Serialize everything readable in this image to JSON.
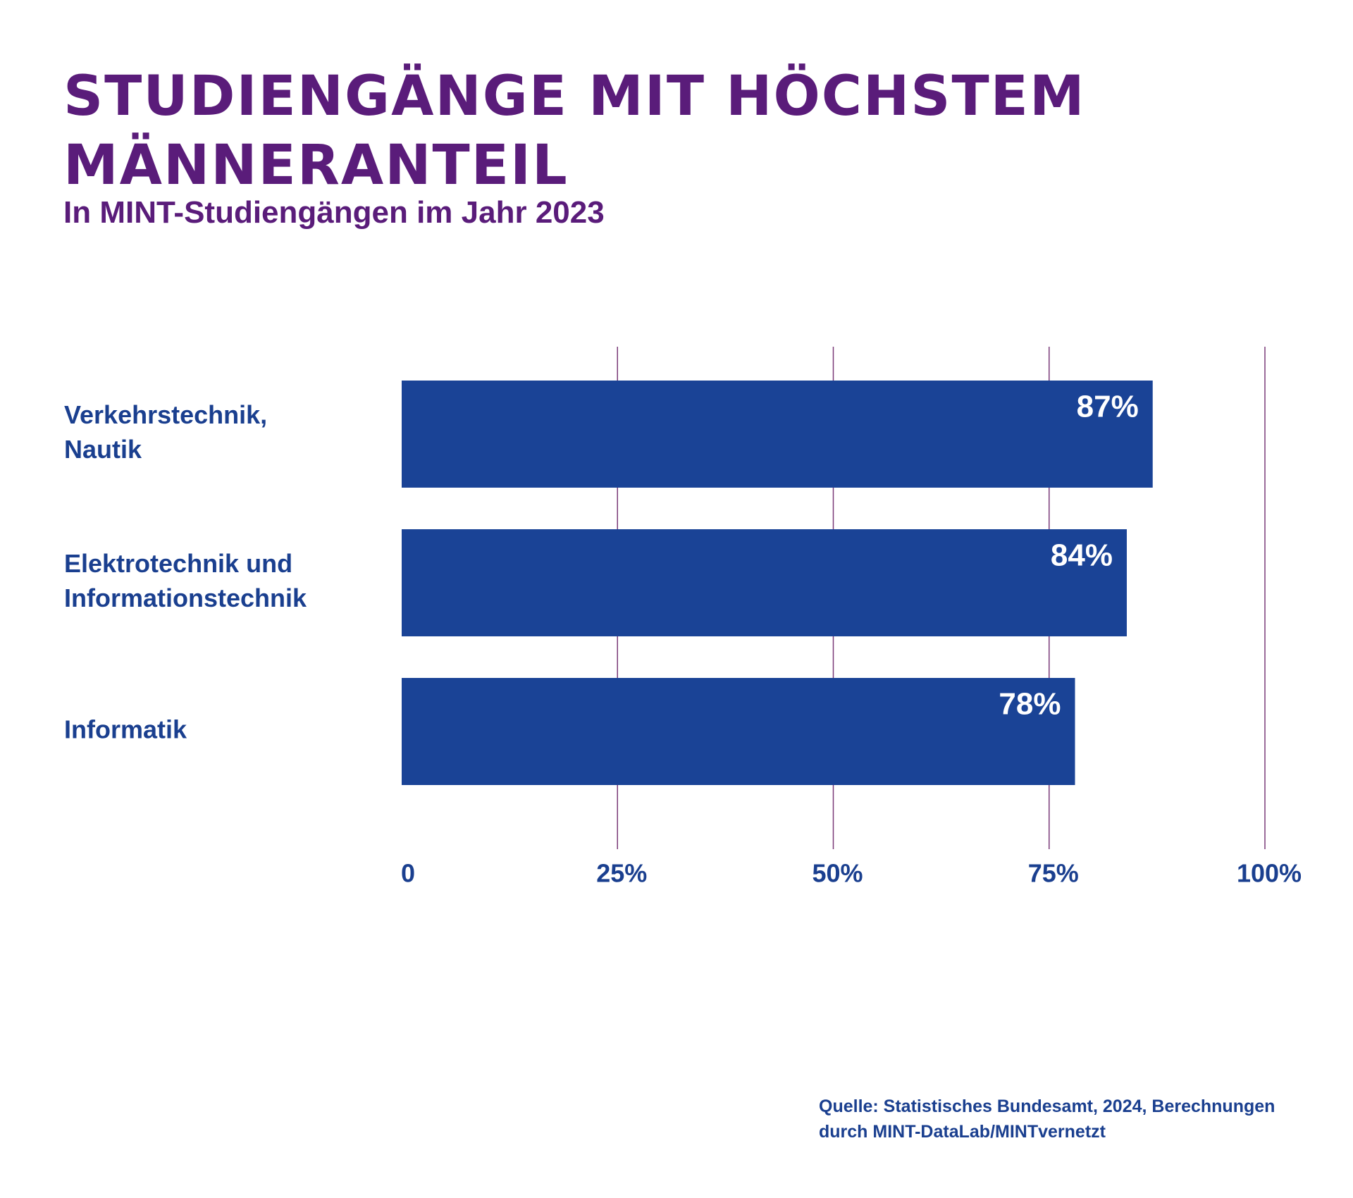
{
  "title": "STUDIENGÄNGE MIT HÖCHSTEM MÄNNERANTEIL",
  "subtitle": "In MINT-Studiengängen im Jahr 2023",
  "source": {
    "line1": "Quelle: Statistisches Bundesamt, 2024, Berechnungen",
    "line2": "durch MINT-DataLab/MINTvernetzt"
  },
  "colors": {
    "title": "#5a1c7a",
    "bar": "#1a4396",
    "text": "#1a3f8f",
    "grid": "#7a3a78",
    "value_label": "#ffffff"
  },
  "chart_data": {
    "type": "bar",
    "orientation": "horizontal",
    "categories": [
      [
        "Verkehrstechnik,",
        "Nautik"
      ],
      [
        "Elektrotechnik und",
        "Informationstechnik"
      ],
      [
        "Informatik"
      ]
    ],
    "values": [
      87,
      84,
      78
    ],
    "value_labels": [
      "87%",
      "84%",
      "78%"
    ],
    "xlim": [
      0,
      100
    ],
    "xticks": [
      0,
      25,
      50,
      75,
      100
    ],
    "xtick_labels": [
      "0",
      "25%",
      "50%",
      "75%",
      "100%"
    ],
    "grid": true,
    "legend": false
  }
}
